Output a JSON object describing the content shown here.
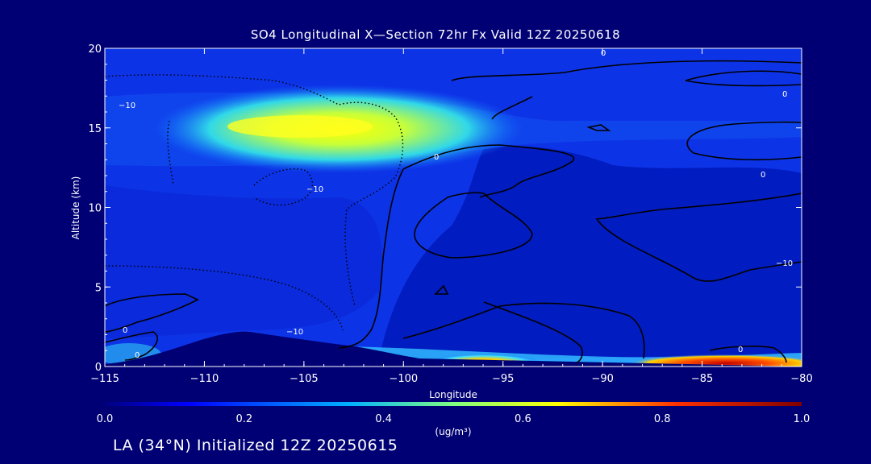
{
  "chart_data": {
    "type": "heatmap",
    "title": "SO4 Longitudinal X—Section 72hr  Fx Valid 12Z 20250618",
    "xlabel": "Longitude",
    "ylabel": "Altitude (km)",
    "xlim": [
      -115,
      -80
    ],
    "ylim": [
      0,
      20
    ],
    "xticks": [
      "−115",
      "−110",
      "−105",
      "−100",
      "−95",
      "−90",
      "−85",
      "−80"
    ],
    "yticks": [
      "0",
      "5",
      "10",
      "15",
      "20"
    ],
    "colorbar": {
      "min": 0.0,
      "max": 1.0,
      "ticks": [
        "0.0",
        "0.2",
        "0.4",
        "0.6",
        "0.8",
        "1.0"
      ],
      "unit": "(ug/m³)"
    },
    "features": [
      {
        "kind": "high-concentration layer",
        "lon_range": [
          -111,
          -96
        ],
        "alt_km": 15,
        "peak_value": 0.55
      },
      {
        "kind": "near-surface maxima",
        "lon_range": [
          -97,
          -94
        ],
        "alt_km": 0.3,
        "peak_value": 0.75
      },
      {
        "kind": "near-surface maxima",
        "lon_range": [
          -88,
          -80
        ],
        "alt_km": 0.2,
        "peak_value": 0.9
      }
    ],
    "contour_labels": [
      "0",
      "0",
      "0",
      "−10",
      "−10",
      "−10",
      "0",
      "0",
      "−10",
      "0",
      "0"
    ]
  },
  "footer": "LA (34°N) Initialized 12Z 20250615"
}
